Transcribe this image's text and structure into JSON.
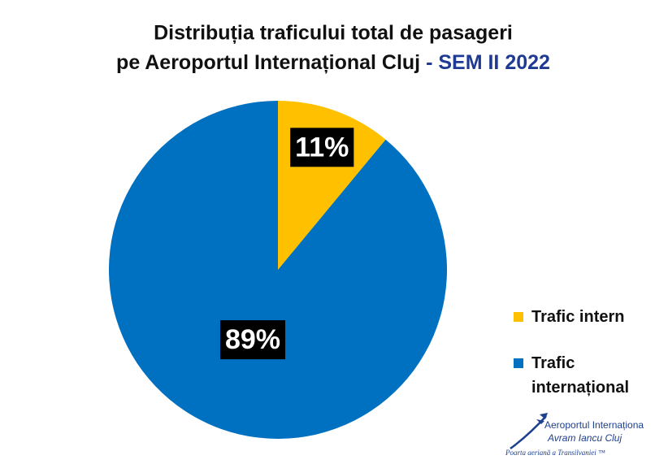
{
  "chart_data": {
    "type": "pie",
    "title": [
      "Distribuția traficului total de pasageri",
      "pe Aeroportul Internațional Cluj"
    ],
    "subtitle": "- SEM II 2022",
    "categories": [
      "Trafic intern",
      "Trafic internațional"
    ],
    "values": [
      11,
      89
    ],
    "value_labels": [
      "11%",
      "89%"
    ],
    "colors": [
      "#ffc000",
      "#0070c0"
    ],
    "legend": "right"
  },
  "logo": {
    "lines": [
      "Aeroportul Internaționa",
      "Avram Iancu Cluj",
      "Poarta aeriană a Transilvaniei ™"
    ]
  }
}
